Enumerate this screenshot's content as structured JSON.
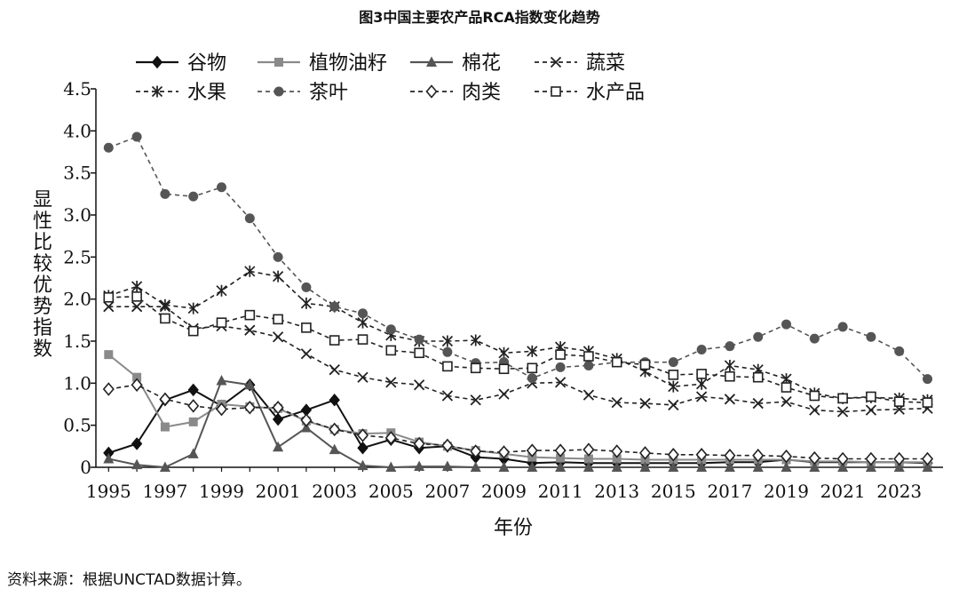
{
  "title": "图3中国主要农产品RCA指数变化趋势",
  "source": "资料来源：根据UNCTAD数据计算。",
  "chart_data": {
    "type": "line",
    "title": "图3中国主要农产品RCA指数变化趋势",
    "xlabel": "年份",
    "ylabel": "显性比较优势指数",
    "ylim": [
      0,
      4.5
    ],
    "yticks": [
      "0",
      "0.5",
      "1.0",
      "1.5",
      "2.0",
      "2.5",
      "3.0",
      "3.5",
      "4.0",
      "4.5"
    ],
    "xticks": [
      "1995",
      "1997",
      "1999",
      "2001",
      "2003",
      "2005",
      "2007",
      "2009",
      "2011",
      "2013",
      "2015",
      "2017",
      "2019",
      "2021",
      "2023"
    ],
    "x": [
      1995,
      1996,
      1997,
      1998,
      1999,
      2000,
      2001,
      2002,
      2003,
      2004,
      2005,
      2006,
      2007,
      2008,
      2009,
      2010,
      2011,
      2012,
      2013,
      2014,
      2015,
      2016,
      2017,
      2018,
      2019,
      2020,
      2021,
      2022,
      2023,
      2024
    ],
    "legend_placement": "top",
    "series": [
      {
        "name": "谷物",
        "color": "#111111",
        "dash": "solid",
        "marker": "diamond-filled",
        "values": [
          0.17,
          0.28,
          0.8,
          0.92,
          0.73,
          0.98,
          0.57,
          0.68,
          0.8,
          0.23,
          0.33,
          0.23,
          0.25,
          0.12,
          0.1,
          0.05,
          0.06,
          0.05,
          0.05,
          0.05,
          0.05,
          0.05,
          0.06,
          0.06,
          0.09,
          0.06,
          0.06,
          0.06,
          0.06,
          0.05
        ]
      },
      {
        "name": "植物油籽",
        "color": "#8a8a8a",
        "dash": "solid",
        "marker": "square-filled",
        "values": [
          1.34,
          1.07,
          0.48,
          0.54,
          0.75,
          0.72,
          0.7,
          0.55,
          0.45,
          0.4,
          0.41,
          0.3,
          0.25,
          0.2,
          0.16,
          0.12,
          0.11,
          0.1,
          0.1,
          0.09,
          0.09,
          0.09,
          0.09,
          0.09,
          0.09,
          0.07,
          0.07,
          0.06,
          0.06,
          0.06
        ]
      },
      {
        "name": "棉花",
        "color": "#555555",
        "dash": "solid",
        "marker": "triangle-filled",
        "values": [
          0.1,
          0.03,
          0.0,
          0.16,
          1.03,
          0.98,
          0.24,
          0.47,
          0.21,
          0.02,
          0.0,
          0.01,
          0.01,
          0.0,
          0.0,
          0.0,
          0.0,
          0.0,
          0.0,
          0.0,
          0.0,
          0.0,
          0.0,
          0.0,
          0.0,
          0.0,
          0.0,
          0.0,
          0.0,
          0.0
        ]
      },
      {
        "name": "蔬菜",
        "color": "#222222",
        "dash": "dashed",
        "marker": "x",
        "values": [
          1.91,
          1.91,
          1.91,
          1.65,
          1.68,
          1.63,
          1.55,
          1.35,
          1.16,
          1.07,
          1.01,
          0.98,
          0.85,
          0.8,
          0.87,
          1.0,
          1.01,
          0.86,
          0.77,
          0.76,
          0.74,
          0.84,
          0.81,
          0.76,
          0.78,
          0.68,
          0.66,
          0.68,
          0.69,
          0.7
        ]
      },
      {
        "name": "水果",
        "color": "#222222",
        "dash": "dashed",
        "marker": "asterisk",
        "values": [
          2.04,
          2.15,
          1.93,
          1.89,
          2.1,
          2.33,
          2.27,
          1.95,
          1.91,
          1.72,
          1.57,
          1.5,
          1.5,
          1.51,
          1.36,
          1.38,
          1.43,
          1.38,
          1.29,
          1.14,
          0.96,
          0.99,
          1.21,
          1.16,
          1.05,
          0.88,
          0.82,
          0.83,
          0.82,
          0.8
        ]
      },
      {
        "name": "茶叶",
        "color": "#555555",
        "dash": "dashed",
        "marker": "circle-filled",
        "values": [
          3.8,
          3.93,
          3.25,
          3.22,
          3.33,
          2.96,
          2.5,
          2.14,
          1.91,
          1.83,
          1.64,
          1.52,
          1.37,
          1.24,
          1.25,
          1.06,
          1.19,
          1.21,
          1.25,
          1.25,
          1.25,
          1.4,
          1.44,
          1.55,
          1.7,
          1.53,
          1.67,
          1.55,
          1.38,
          1.05
        ]
      },
      {
        "name": "肉类",
        "color": "#222222",
        "dash": "dashed",
        "marker": "diamond-open",
        "values": [
          0.93,
          0.98,
          0.81,
          0.73,
          0.69,
          0.71,
          0.71,
          0.56,
          0.45,
          0.38,
          0.35,
          0.28,
          0.26,
          0.19,
          0.18,
          0.2,
          0.2,
          0.21,
          0.19,
          0.17,
          0.15,
          0.15,
          0.14,
          0.14,
          0.13,
          0.11,
          0.1,
          0.1,
          0.1,
          0.1
        ]
      },
      {
        "name": "水产品",
        "color": "#222222",
        "dash": "dashed",
        "marker": "square-open",
        "values": [
          2.02,
          2.03,
          1.77,
          1.62,
          1.72,
          1.81,
          1.76,
          1.66,
          1.51,
          1.52,
          1.39,
          1.36,
          1.2,
          1.18,
          1.17,
          1.18,
          1.34,
          1.32,
          1.25,
          1.22,
          1.1,
          1.11,
          1.08,
          1.07,
          0.95,
          0.85,
          0.82,
          0.84,
          0.78,
          0.77
        ]
      }
    ]
  }
}
